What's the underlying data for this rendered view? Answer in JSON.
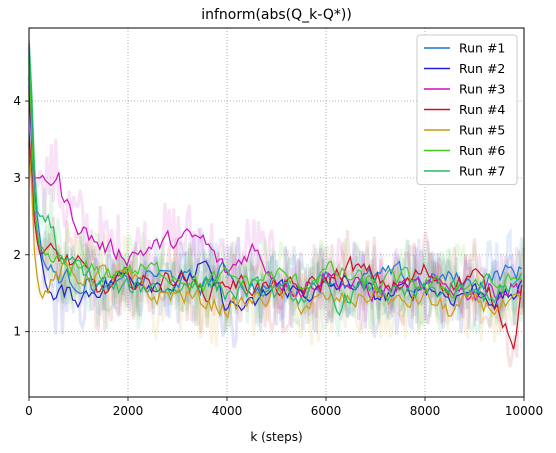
{
  "chart_data": {
    "type": "line",
    "title": "infnorm(abs(Q_k-Q*))",
    "xlabel": "k (steps)",
    "ylabel": "",
    "xlim": [
      0,
      10000
    ],
    "ylim": [
      0.15,
      4.95
    ],
    "xticks": [
      0,
      2000,
      4000,
      6000,
      8000,
      10000
    ],
    "xtick_labels": [
      "0",
      "2000",
      "4000",
      "6000",
      "8000",
      "10000"
    ],
    "yticks": [
      1,
      2,
      3,
      4
    ],
    "ytick_labels": [
      "1",
      "2",
      "3",
      "4"
    ],
    "grid": true,
    "legend_position": "top-right",
    "series": [
      {
        "name": "Run #1",
        "color": "#1f77d4",
        "x": [
          0,
          50,
          100,
          200,
          300,
          500,
          700,
          1000,
          1500,
          2000,
          2500,
          3000,
          3500,
          4000,
          4500,
          5000,
          5500,
          6000,
          6500,
          7000,
          7500,
          8000,
          8500,
          9000,
          9500,
          10000
        ],
        "y": [
          4.7,
          3.9,
          2.9,
          2.3,
          1.9,
          1.75,
          1.7,
          1.65,
          1.6,
          1.6,
          1.75,
          1.7,
          1.6,
          1.8,
          1.55,
          1.6,
          1.55,
          1.7,
          1.65,
          1.7,
          1.75,
          1.65,
          1.7,
          1.6,
          1.75,
          1.8
        ]
      },
      {
        "name": "Run #2",
        "color": "#2222cc",
        "x": [
          0,
          50,
          100,
          200,
          300,
          500,
          700,
          1000,
          1500,
          2000,
          2500,
          3000,
          3500,
          4000,
          4500,
          5000,
          5500,
          6000,
          6500,
          7000,
          7500,
          8000,
          8500,
          9000,
          9500,
          10000
        ],
        "y": [
          4.2,
          3.5,
          2.7,
          2.1,
          1.8,
          1.4,
          1.5,
          1.45,
          1.6,
          1.75,
          1.65,
          1.6,
          1.85,
          1.35,
          1.3,
          1.6,
          1.5,
          1.55,
          1.65,
          1.45,
          1.5,
          1.6,
          1.45,
          1.55,
          1.4,
          1.55
        ]
      },
      {
        "name": "Run #3",
        "color": "#cc11bb",
        "x": [
          0,
          50,
          100,
          200,
          300,
          400,
          500,
          600,
          700,
          1000,
          1200,
          1500,
          2000,
          2500,
          3000,
          3500,
          4000,
          4500,
          5000,
          5500,
          6000,
          6500,
          7000,
          7500,
          8000,
          8500,
          9000,
          9500,
          10000
        ],
        "y": [
          4.3,
          3.6,
          3.0,
          3.0,
          3.0,
          3.0,
          3.0,
          3.0,
          2.7,
          2.4,
          2.25,
          2.1,
          2.0,
          2.1,
          2.2,
          2.2,
          1.75,
          2.1,
          1.7,
          1.55,
          1.75,
          1.6,
          1.5,
          1.6,
          1.55,
          1.6,
          1.5,
          1.55,
          1.6
        ]
      },
      {
        "name": "Run #4",
        "color": "#cc1122",
        "x": [
          0,
          50,
          100,
          200,
          300,
          500,
          700,
          1000,
          1500,
          2000,
          2500,
          3000,
          3500,
          4000,
          4500,
          5000,
          5500,
          6000,
          6500,
          7000,
          7500,
          8000,
          8500,
          9000,
          9500,
          9800,
          10000
        ],
        "y": [
          3.6,
          3.1,
          2.5,
          2.0,
          2.05,
          2.0,
          1.95,
          1.85,
          1.5,
          1.7,
          1.6,
          1.75,
          1.5,
          1.65,
          1.6,
          1.55,
          1.55,
          1.65,
          1.85,
          1.7,
          1.55,
          1.8,
          1.6,
          1.75,
          1.3,
          0.9,
          1.75
        ]
      },
      {
        "name": "Run #5",
        "color": "#cc9911",
        "x": [
          0,
          50,
          100,
          200,
          300,
          500,
          700,
          1000,
          1500,
          2000,
          2500,
          3000,
          3500,
          4000,
          4500,
          5000,
          5500,
          6000,
          6500,
          7000,
          7500,
          8000,
          8500,
          9000,
          9500,
          10000
        ],
        "y": [
          3.4,
          3.0,
          2.1,
          1.5,
          1.55,
          1.65,
          1.8,
          1.7,
          1.75,
          1.7,
          1.45,
          1.5,
          1.4,
          1.3,
          1.4,
          1.5,
          1.35,
          1.4,
          1.4,
          1.5,
          1.35,
          1.45,
          1.25,
          1.4,
          1.3,
          1.35
        ]
      },
      {
        "name": "Run #6",
        "color": "#44cc22",
        "x": [
          0,
          50,
          100,
          200,
          300,
          500,
          700,
          1000,
          1500,
          2000,
          2500,
          3000,
          3500,
          4000,
          4500,
          5000,
          5500,
          6000,
          6500,
          7000,
          7500,
          8000,
          8500,
          9000,
          9500,
          10000
        ],
        "y": [
          4.6,
          3.7,
          2.7,
          2.1,
          1.95,
          1.9,
          1.85,
          1.8,
          1.75,
          1.8,
          1.8,
          1.75,
          1.6,
          1.7,
          1.65,
          1.75,
          1.6,
          1.8,
          1.7,
          1.6,
          1.7,
          1.6,
          1.55,
          1.65,
          1.6,
          1.7
        ]
      },
      {
        "name": "Run #7",
        "color": "#22bb66",
        "x": [
          0,
          50,
          100,
          150,
          200,
          300,
          400,
          500,
          600,
          700,
          900,
          1200,
          1500,
          2000,
          2500,
          3000,
          3500,
          4000,
          4500,
          5000,
          5500,
          6000,
          6200,
          6500,
          7000,
          7500,
          8000,
          8500,
          9000,
          9500,
          10000
        ],
        "y": [
          4.8,
          4.2,
          3.3,
          2.6,
          2.5,
          2.5,
          2.45,
          2.3,
          2.0,
          1.8,
          1.9,
          1.75,
          1.55,
          1.55,
          1.6,
          1.55,
          1.7,
          1.5,
          1.55,
          1.5,
          1.45,
          1.6,
          1.3,
          1.5,
          1.6,
          1.45,
          1.5,
          1.55,
          1.45,
          1.5,
          1.65
        ]
      }
    ]
  }
}
